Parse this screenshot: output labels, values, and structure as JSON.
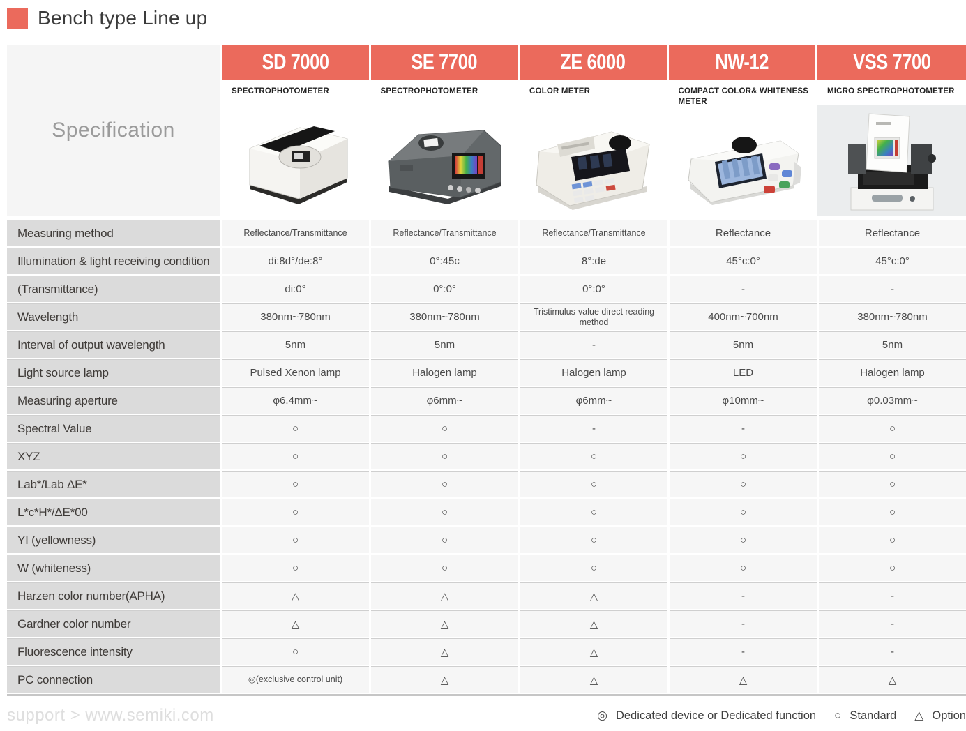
{
  "page": {
    "title": "Bench type Line up",
    "footer_link": "support > www.semiki.com"
  },
  "colors": {
    "accent": "#EB6A5C",
    "label_cell_bg": "#dbdbdb",
    "data_cell_bg": "#f6f6f6",
    "header_label_bg": "#f5f5f5"
  },
  "table": {
    "spec_header": "Specification",
    "products": [
      {
        "name": "SD 7000",
        "type": "SPECTROPHOTOMETER",
        "image": "sd-7000-product-photo"
      },
      {
        "name": "SE 7700",
        "type": "SPECTROPHOTOMETER",
        "image": "se-7700-product-photo"
      },
      {
        "name": "ZE 6000",
        "type": "COLOR METER",
        "image": "ze-6000-product-photo"
      },
      {
        "name": "NW-12",
        "type": "COMPACT COLOR& WHITENESS METER",
        "image": "nw-12-product-photo"
      },
      {
        "name": "VSS 7700",
        "type": "MICRO SPECTROPHOTOMETER",
        "image": "vss-7700-product-photo"
      }
    ],
    "rows": [
      {
        "label": "Measuring method",
        "values": [
          "Reflectance/Transmittance",
          "Reflectance/Transmittance",
          "Reflectance/Transmittance",
          "Reflectance",
          "Reflectance"
        ]
      },
      {
        "label": "Illumination & light receiving condition",
        "values": [
          "di:8d°/de:8°",
          "0°:45c",
          "8°:de",
          "45°c:0°",
          "45°c:0°"
        ]
      },
      {
        "label": "(Transmittance)",
        "values": [
          "di:0°",
          "0°:0°",
          "0°:0°",
          "-",
          "-"
        ]
      },
      {
        "label": "Wavelength",
        "values": [
          "380nm~780nm",
          "380nm~780nm",
          "Tristimulus-value direct reading method",
          "400nm~700nm",
          "380nm~780nm"
        ]
      },
      {
        "label": "Interval of output wavelength",
        "values": [
          "5nm",
          "5nm",
          "-",
          "5nm",
          "5nm"
        ]
      },
      {
        "label": "Light source lamp",
        "values": [
          "Pulsed Xenon lamp",
          "Halogen lamp",
          "Halogen lamp",
          "LED",
          "Halogen lamp"
        ]
      },
      {
        "label": "Measuring aperture",
        "values": [
          "φ6.4mm~",
          "φ6mm~",
          "φ6mm~",
          "φ10mm~",
          "φ0.03mm~"
        ]
      },
      {
        "label": "Spectral Value",
        "values": [
          "○",
          "○",
          "-",
          "-",
          "○"
        ]
      },
      {
        "label": "XYZ",
        "values": [
          "○",
          "○",
          "○",
          "○",
          "○"
        ]
      },
      {
        "label": "Lab*/Lab ΔE*",
        "values": [
          "○",
          "○",
          "○",
          "○",
          "○"
        ]
      },
      {
        "label": "L*c*H*/ΔE*00",
        "values": [
          "○",
          "○",
          "○",
          "○",
          "○"
        ]
      },
      {
        "label": "YI (yellowness)",
        "values": [
          "○",
          "○",
          "○",
          "○",
          "○"
        ]
      },
      {
        "label": "W (whiteness)",
        "values": [
          "○",
          "○",
          "○",
          "○",
          "○"
        ]
      },
      {
        "label": "Harzen color number(APHA)",
        "values": [
          "△",
          "△",
          "△",
          "-",
          "-"
        ]
      },
      {
        "label": "Gardner color number",
        "values": [
          "△",
          "△",
          "△",
          "-",
          "-"
        ]
      },
      {
        "label": "Fluorescence intensity",
        "values": [
          "○",
          "△",
          "△",
          "-",
          "-"
        ]
      },
      {
        "label": "PC connection",
        "values": [
          "◎(exclusive control unit)",
          "△",
          "△",
          "△",
          "△"
        ]
      }
    ],
    "legend": [
      {
        "symbol": "◎",
        "label": "Dedicated device or Dedicated function"
      },
      {
        "symbol": "○",
        "label": "Standard"
      },
      {
        "symbol": "△",
        "label": "Option"
      }
    ]
  }
}
